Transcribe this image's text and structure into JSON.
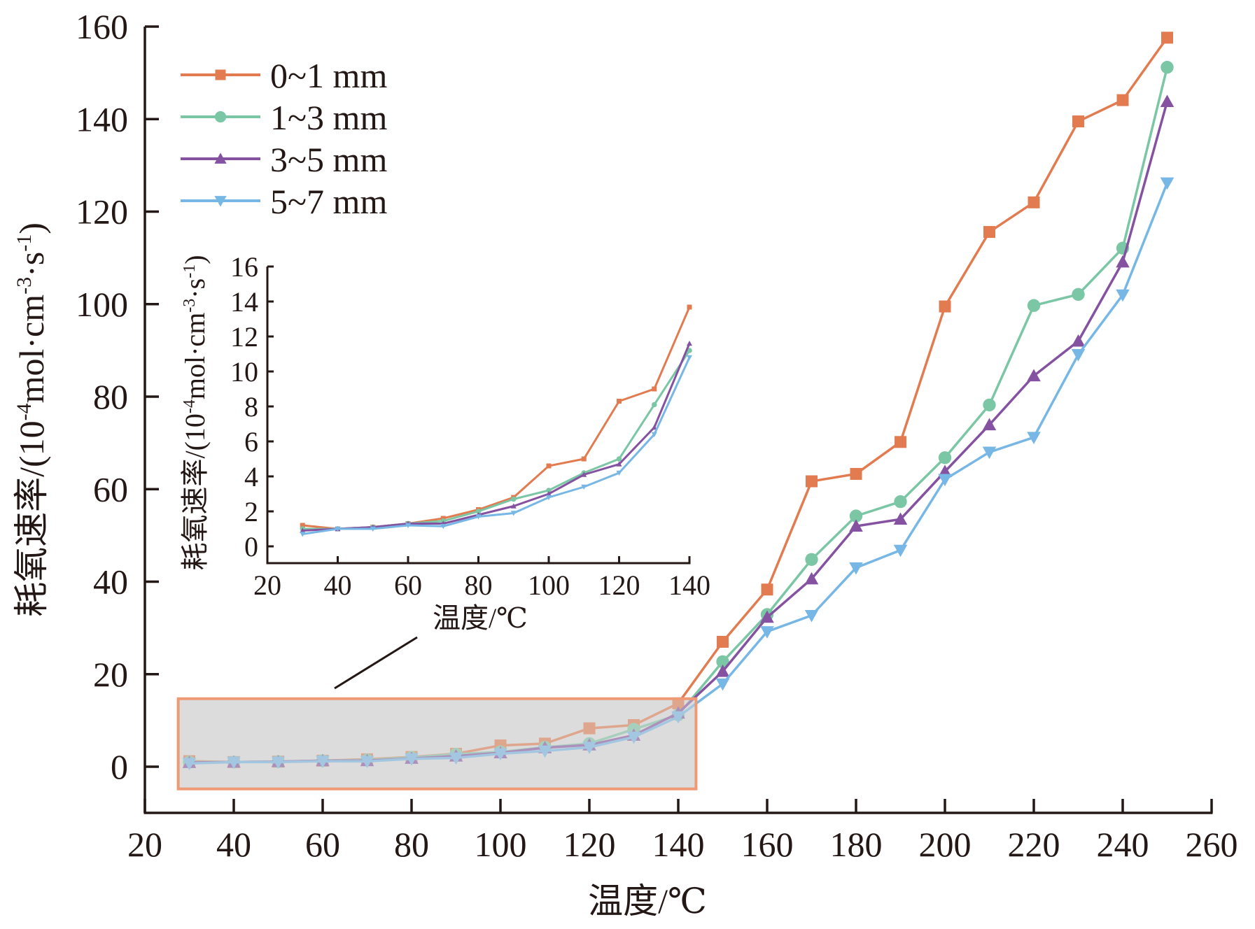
{
  "chart_data": {
    "type": "line",
    "title": "",
    "xlabel": "温度/℃",
    "ylabel_parts": [
      "耗氧速率/(10",
      "-4",
      "mol·cm",
      "-3",
      "·s",
      "-1",
      ")"
    ],
    "ylabel": "耗氧速率/(10-4mol·cm-3·s-1)",
    "xlim": [
      20,
      260
    ],
    "ylim": [
      -9,
      160
    ],
    "xticks": [
      20,
      40,
      60,
      80,
      100,
      120,
      140,
      160,
      180,
      200,
      220,
      240,
      260
    ],
    "yticks": [
      0,
      20,
      40,
      60,
      80,
      100,
      120,
      140,
      160
    ],
    "grid": false,
    "legend_position": "top-left",
    "x": [
      30,
      40,
      50,
      60,
      70,
      80,
      90,
      100,
      110,
      120,
      130,
      140,
      150,
      160,
      170,
      180,
      190,
      200,
      210,
      220,
      230,
      240,
      250
    ],
    "series": [
      {
        "name": "0~1 mm",
        "color": "#E27B4F",
        "marker": "square",
        "values": [
          1.2,
          1.0,
          1.1,
          1.3,
          1.6,
          2.1,
          2.8,
          4.6,
          5.0,
          8.3,
          9.0,
          13.7,
          27.0,
          38.3,
          61.7,
          63.3,
          70.2,
          99.5,
          115.6,
          122.0,
          139.5,
          144.1,
          157.6
        ]
      },
      {
        "name": "1~3 mm",
        "color": "#7AC6A5",
        "marker": "circle",
        "values": [
          1.0,
          1.0,
          1.1,
          1.3,
          1.45,
          2.0,
          2.7,
          3.2,
          4.2,
          5.0,
          8.1,
          11.2,
          22.7,
          32.9,
          44.8,
          54.2,
          57.3,
          66.8,
          78.2,
          99.7,
          102.1,
          112.1,
          151.2
        ]
      },
      {
        "name": "3~5 mm",
        "color": "#8552A1",
        "marker": "triangle-up",
        "values": [
          0.9,
          1.0,
          1.1,
          1.3,
          1.3,
          1.8,
          2.3,
          3.0,
          4.1,
          4.7,
          6.8,
          11.6,
          20.6,
          32.3,
          40.6,
          52.0,
          53.5,
          63.8,
          73.9,
          84.5,
          92.0,
          109.1,
          143.8
        ]
      },
      {
        "name": "5~7 mm",
        "color": "#76B7E5",
        "marker": "triangle-down",
        "values": [
          0.7,
          1.0,
          1.0,
          1.2,
          1.15,
          1.7,
          1.9,
          2.8,
          3.4,
          4.2,
          6.4,
          10.8,
          17.9,
          29.2,
          32.7,
          43.0,
          46.8,
          62.1,
          68.0,
          71.2,
          89.1,
          102.0,
          126.2
        ]
      }
    ],
    "highlight_box": {
      "x_range": [
        27.5,
        144
      ],
      "y_range": [
        -4.8,
        14.7
      ],
      "fill": "#DCDCDC",
      "stroke": "#EE9A77"
    },
    "inset": {
      "type": "line",
      "xlabel": "温度/℃",
      "ylabel_parts": [
        "耗氧速率/(10",
        "-4",
        "mol·cm",
        "-3",
        "·s",
        "-1",
        ")"
      ],
      "xlim": [
        20,
        140
      ],
      "ylim": [
        -1.0,
        16
      ],
      "xticks": [
        20,
        40,
        60,
        80,
        100,
        120,
        140
      ],
      "yticks": [
        0,
        2,
        4,
        6,
        8,
        10,
        12,
        14,
        16
      ],
      "x_from": 30,
      "x_to": 140
    }
  }
}
